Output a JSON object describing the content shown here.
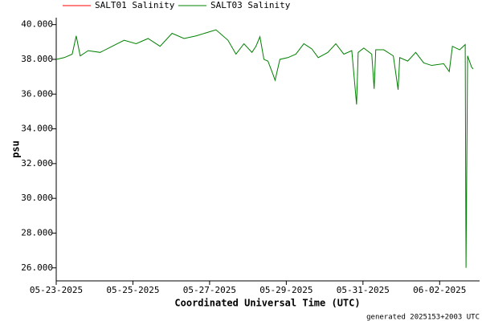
{
  "chart_data": {
    "type": "line",
    "ylabel": "psu",
    "xlabel": "Coordinated Universal Time (UTC)",
    "footnote": "generated 2025153+2003 UTC",
    "x": [
      "2025-05-23T00:00",
      "2025-05-23T05:00",
      "2025-05-23T10:00",
      "2025-05-23T12:30",
      "2025-05-23T15:00",
      "2025-05-23T20:00",
      "2025-05-24T03:30",
      "2025-05-24T11:00",
      "2025-05-24T18:30",
      "2025-05-25T02:00",
      "2025-05-25T09:30",
      "2025-05-25T17:00",
      "2025-05-26T00:30",
      "2025-05-26T08:00",
      "2025-05-26T15:30",
      "2025-05-27T04:00",
      "2025-05-27T11:30",
      "2025-05-27T16:30",
      "2025-05-27T21:30",
      "2025-05-28T02:30",
      "2025-05-28T05:00",
      "2025-05-28T07:30",
      "2025-05-28T10:00",
      "2025-05-28T12:30",
      "2025-05-28T15:00",
      "2025-05-28T17:00",
      "2025-05-28T20:00",
      "2025-05-29T01:00",
      "2025-05-29T06:00",
      "2025-05-29T11:00",
      "2025-05-29T16:00",
      "2025-05-29T20:00",
      "2025-05-30T02:00",
      "2025-05-30T07:00",
      "2025-05-30T12:00",
      "2025-05-30T17:00",
      "2025-05-30T20:00",
      "2025-05-30T21:00",
      "2025-05-31T00:30",
      "2025-05-31T05:30",
      "2025-05-31T07:00",
      "2025-05-31T08:00",
      "2025-05-31T13:00",
      "2025-05-31T19:00",
      "2025-05-31T22:00",
      "2025-05-31T23:00",
      "2025-06-01T04:00",
      "2025-06-01T09:00",
      "2025-06-01T14:00",
      "2025-06-01T19:00",
      "2025-06-02T02:30",
      "2025-06-02T06:00",
      "2025-06-02T08:00",
      "2025-06-02T12:30",
      "2025-06-02T16:00",
      "2025-06-02T16:30",
      "2025-06-02T17:30",
      "2025-06-02T20:00",
      "2025-06-02T21:00"
    ],
    "series": [
      {
        "name": "SALT01 Salinity",
        "color": "#ff0000",
        "values": [
          null,
          null,
          null,
          null,
          null,
          null,
          null,
          null,
          null,
          null,
          null,
          null,
          null,
          null,
          null,
          null,
          null,
          null,
          null,
          null,
          null,
          null,
          null,
          null,
          null,
          null,
          null,
          null,
          null,
          null,
          null,
          null,
          null,
          null,
          null,
          null,
          null,
          null,
          null,
          null,
          null,
          null,
          null,
          null,
          null,
          null,
          null,
          null,
          null,
          null,
          null,
          null,
          null,
          null,
          null,
          null,
          null,
          null,
          null
        ]
      },
      {
        "name": "SALT03 Salinity",
        "color": "#008000",
        "values": [
          38.0,
          38.1,
          38.3,
          39.35,
          38.2,
          38.5,
          38.4,
          38.75,
          39.1,
          38.9,
          39.2,
          38.75,
          39.5,
          39.2,
          39.35,
          39.7,
          39.1,
          38.3,
          38.9,
          38.4,
          38.75,
          39.3,
          38.0,
          37.9,
          37.3,
          36.8,
          38.0,
          38.1,
          38.3,
          38.9,
          38.6,
          38.1,
          38.4,
          38.9,
          38.3,
          38.5,
          35.4,
          38.4,
          38.65,
          38.3,
          36.3,
          38.55,
          38.55,
          38.2,
          36.25,
          38.1,
          37.9,
          38.4,
          37.8,
          37.65,
          37.75,
          37.3,
          38.75,
          38.55,
          38.85,
          26.0,
          38.2,
          37.55,
          37.45
        ]
      }
    ],
    "xlim": [
      "2025-05-23T00:00",
      "2025-06-03T01:00"
    ],
    "xticks": [
      {
        "value": "2025-05-23T00:00",
        "label": "05-23-2025"
      },
      {
        "value": "2025-05-25T00:00",
        "label": "05-25-2025"
      },
      {
        "value": "2025-05-27T00:00",
        "label": "05-27-2025"
      },
      {
        "value": "2025-05-29T00:00",
        "label": "05-29-2025"
      },
      {
        "value": "2025-05-31T00:00",
        "label": "05-31-2025"
      },
      {
        "value": "2025-06-02T00:00",
        "label": "06-02-2025"
      }
    ],
    "ylim": [
      25.25,
      40.4
    ],
    "yticks": [
      {
        "value": 26,
        "label": "26.000"
      },
      {
        "value": 28,
        "label": "28.000"
      },
      {
        "value": 30,
        "label": "30.000"
      },
      {
        "value": 32,
        "label": "32.000"
      },
      {
        "value": 34,
        "label": "34.000"
      },
      {
        "value": 36,
        "label": "36.000"
      },
      {
        "value": 38,
        "label": "38.000"
      },
      {
        "value": 40,
        "label": "40.000"
      }
    ]
  }
}
